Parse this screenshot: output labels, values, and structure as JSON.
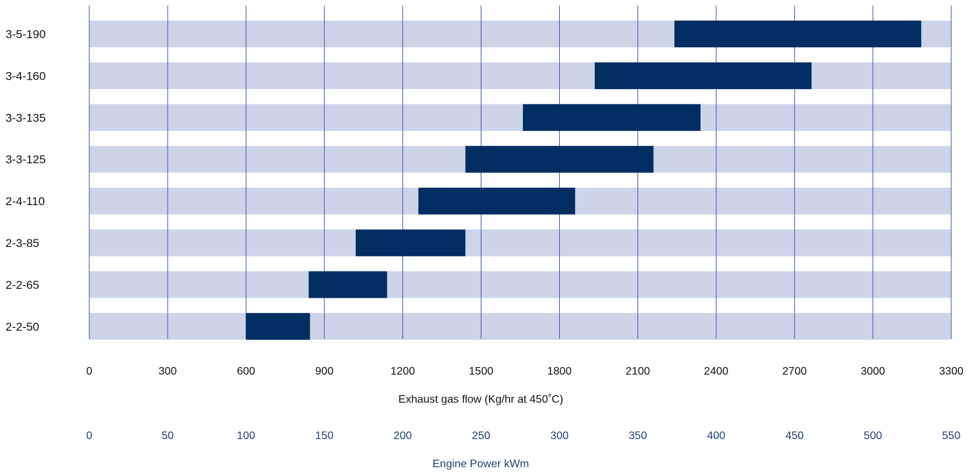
{
  "chart_data": {
    "type": "bar",
    "subtype": "floating-range-horizontal",
    "categories": [
      "3-5-190",
      "3-4-160",
      "3-3-135",
      "3-3-125",
      "2-4-110",
      "2-3-85",
      "2-2-65",
      "2-2-50"
    ],
    "series": [
      {
        "ranges": [
          [
            2240,
            3185
          ],
          [
            1935,
            2765
          ],
          [
            1660,
            2340
          ],
          [
            1440,
            2160
          ],
          [
            1260,
            1860
          ],
          [
            1020,
            1440
          ],
          [
            840,
            1140
          ],
          [
            600,
            845
          ]
        ]
      }
    ],
    "xlabel": "Exhaust gas flow (Kg/hr at 450˚C)",
    "xlim": [
      0,
      3300
    ],
    "xticks": [
      "0",
      "300",
      "600",
      "900",
      "1200",
      "1500",
      "1800",
      "2100",
      "2400",
      "2700",
      "3000",
      "3300"
    ],
    "secondary_axis": {
      "label": "Engine Power kWm",
      "ticks": [
        "0",
        "50",
        "100",
        "150",
        "200",
        "250",
        "300",
        "350",
        "400",
        "450",
        "500",
        "550"
      ]
    },
    "grid": "vertical",
    "legend": "none",
    "colors": {
      "bar": "#002d62",
      "row_band": "#cdd4e8",
      "gridline": "#3a5aa6",
      "secondary_text": "#1f3f73"
    }
  }
}
